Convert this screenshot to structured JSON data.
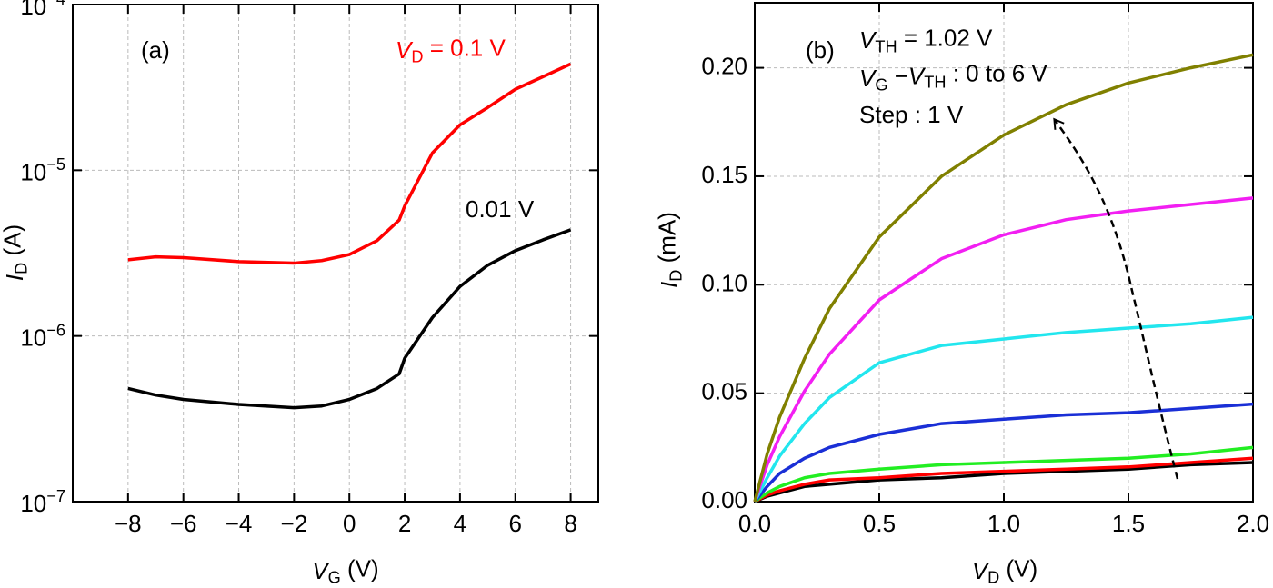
{
  "chart_data": [
    {
      "type": "line",
      "xlabel": "V_{G} (V)",
      "ylabel": "I_{D} (A)",
      "yscale": "log",
      "grid": true,
      "xlim": [
        -10,
        9
      ],
      "ylim": [
        1e-07,
        0.0001
      ],
      "xticks": [
        {
          "value": -8,
          "label": "−8"
        },
        {
          "value": -6,
          "label": "−6"
        },
        {
          "value": -4,
          "label": "−4"
        },
        {
          "value": -2,
          "label": "−2"
        },
        0,
        2,
        4,
        6,
        8
      ],
      "yticks": [
        {
          "value": 1e-07,
          "label": "10^{−7}"
        },
        {
          "value": 1e-06,
          "label": "10^{−6}"
        },
        {
          "value": 1e-05,
          "label": "10^{−5}"
        },
        {
          "value": 0.0001,
          "label": "10^{−4}"
        }
      ],
      "annotations": [
        {
          "text": "(a)"
        },
        {
          "text": "V_{D} = 0.1 V",
          "color": "#ff0000"
        },
        {
          "text": "0.01 V"
        }
      ],
      "x": [
        -8,
        -7,
        -6,
        -4,
        -2,
        -1,
        0,
        1,
        1.8,
        2,
        3,
        4,
        5,
        6,
        7,
        8
      ],
      "series": [
        {
          "color": "#ff0000",
          "values": [
            2.88e-06,
            3e-06,
            2.97e-06,
            2.81e-06,
            2.75e-06,
            2.85e-06,
            3.1e-06,
            3.76e-06,
            5e-06,
            6.08e-06,
            1.27e-05,
            1.88e-05,
            2.39e-05,
            3.08e-05,
            3.67e-05,
            4.38e-05
          ]
        },
        {
          "color": "#000000",
          "values": [
            4.82e-07,
            4.4e-07,
            4.14e-07,
            3.86e-07,
            3.69e-07,
            3.78e-07,
            4.14e-07,
            4.82e-07,
            5.9e-07,
            7.33e-07,
            1.29e-06,
            1.99e-06,
            2.67e-06,
            3.27e-06,
            3.8e-06,
            4.37e-06
          ]
        }
      ]
    },
    {
      "type": "line",
      "xlabel": "V_{D} (V)",
      "ylabel": "I_{D} (mA)",
      "grid": true,
      "xlim": [
        0,
        2
      ],
      "ylim": [
        0,
        0.23
      ],
      "xticks": [
        {
          "value": 0,
          "label": "0.0"
        },
        0.5,
        {
          "value": 1,
          "label": "1.0"
        },
        1.5,
        {
          "value": 2,
          "label": "2.0"
        }
      ],
      "yticks": [
        {
          "value": 0,
          "label": "0.00"
        },
        0.05,
        {
          "value": 0.1,
          "label": "0.10"
        },
        0.15,
        {
          "value": 0.2,
          "label": "0.20"
        }
      ],
      "annotations": [
        {
          "text": "(b)"
        },
        {
          "text": "V_{TH} = 1.02 V"
        },
        {
          "text": "V_{G} −V_{TH}  : 0 to 6 V"
        },
        {
          "text": "Step : 1 V"
        }
      ],
      "x": [
        0,
        0.05,
        0.1,
        0.2,
        0.3,
        0.5,
        0.75,
        1,
        1.25,
        1.5,
        1.75,
        2
      ],
      "series": [
        {
          "color": "#000000",
          "values": [
            0,
            0.0025,
            0.004,
            0.007,
            0.008,
            0.01,
            0.011,
            0.013,
            0.014,
            0.015,
            0.017,
            0.018
          ]
        },
        {
          "color": "#ff0000",
          "values": [
            0,
            0.003,
            0.005,
            0.008,
            0.01,
            0.011,
            0.013,
            0.014,
            0.015,
            0.016,
            0.018,
            0.02
          ]
        },
        {
          "color": "#22ee22",
          "values": [
            0,
            0.004,
            0.007,
            0.011,
            0.013,
            0.015,
            0.017,
            0.018,
            0.019,
            0.02,
            0.022,
            0.025
          ]
        },
        {
          "color": "#1a2fd6",
          "values": [
            0,
            0.007,
            0.013,
            0.02,
            0.025,
            0.031,
            0.036,
            0.038,
            0.04,
            0.041,
            0.043,
            0.045
          ]
        },
        {
          "color": "#22e6ee",
          "values": [
            0,
            0.011,
            0.021,
            0.036,
            0.048,
            0.064,
            0.072,
            0.075,
            0.078,
            0.08,
            0.082,
            0.085
          ]
        },
        {
          "color": "#f21ff2",
          "values": [
            0,
            0.017,
            0.03,
            0.051,
            0.068,
            0.093,
            0.112,
            0.123,
            0.13,
            0.134,
            0.137,
            0.14
          ]
        },
        {
          "color": "#808000",
          "values": [
            0,
            0.022,
            0.039,
            0.066,
            0.089,
            0.122,
            0.15,
            0.169,
            0.183,
            0.193,
            0.2,
            0.206
          ]
        }
      ]
    }
  ]
}
